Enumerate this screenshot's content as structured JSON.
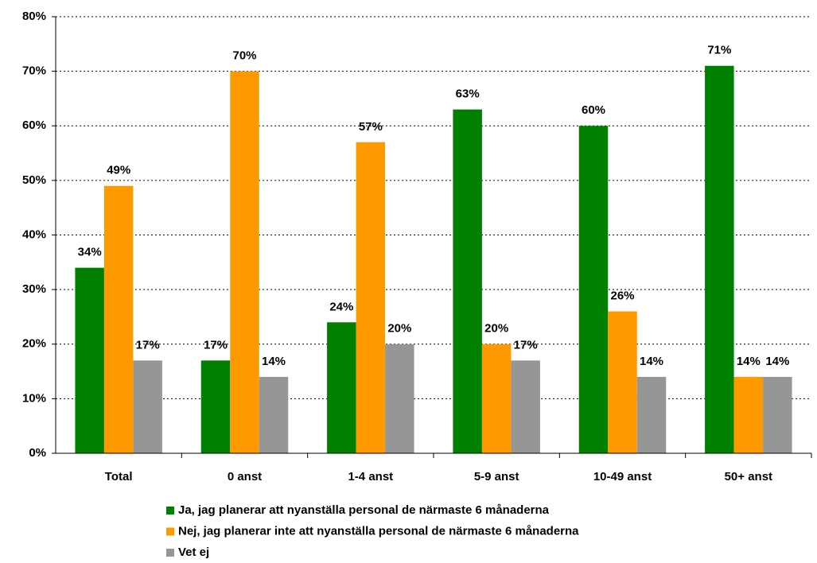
{
  "chart_data": {
    "type": "bar",
    "categories": [
      "Total",
      "0 anst",
      "1-4 anst",
      "5-9 anst",
      "10-49 anst",
      "50+ anst"
    ],
    "series": [
      {
        "name": "Ja, jag planerar att nyanställa personal de närmaste 6 månaderna",
        "color": "#008000",
        "values": [
          34,
          17,
          24,
          63,
          60,
          71
        ],
        "value_labels": [
          "34%",
          "17%",
          "24%",
          "63%",
          "60%",
          "71%"
        ]
      },
      {
        "name": "Nej, jag planerar inte att nyanställa personal de närmaste 6 månaderna",
        "color": "#ff9900",
        "values": [
          49,
          70,
          57,
          20,
          26,
          14
        ],
        "value_labels": [
          "49%",
          "70%",
          "57%",
          "20%",
          "26%",
          "14%"
        ]
      },
      {
        "name": "Vet ej",
        "color": "#969696",
        "values": [
          17,
          14,
          20,
          17,
          14,
          14
        ],
        "value_labels": [
          "17%",
          "14%",
          "20%",
          "17%",
          "14%",
          "14%"
        ]
      }
    ],
    "ylim": [
      0,
      80
    ],
    "yticks": [
      {
        "value": 0,
        "label": "0%"
      },
      {
        "value": 10,
        "label": "10%"
      },
      {
        "value": 20,
        "label": "20%"
      },
      {
        "value": 30,
        "label": "30%"
      },
      {
        "value": 40,
        "label": "40%"
      },
      {
        "value": 50,
        "label": "50%"
      },
      {
        "value": 60,
        "label": "60%"
      },
      {
        "value": 70,
        "label": "70%"
      },
      {
        "value": 80,
        "label": "80%"
      }
    ],
    "grid": true,
    "legend": "bottom"
  }
}
